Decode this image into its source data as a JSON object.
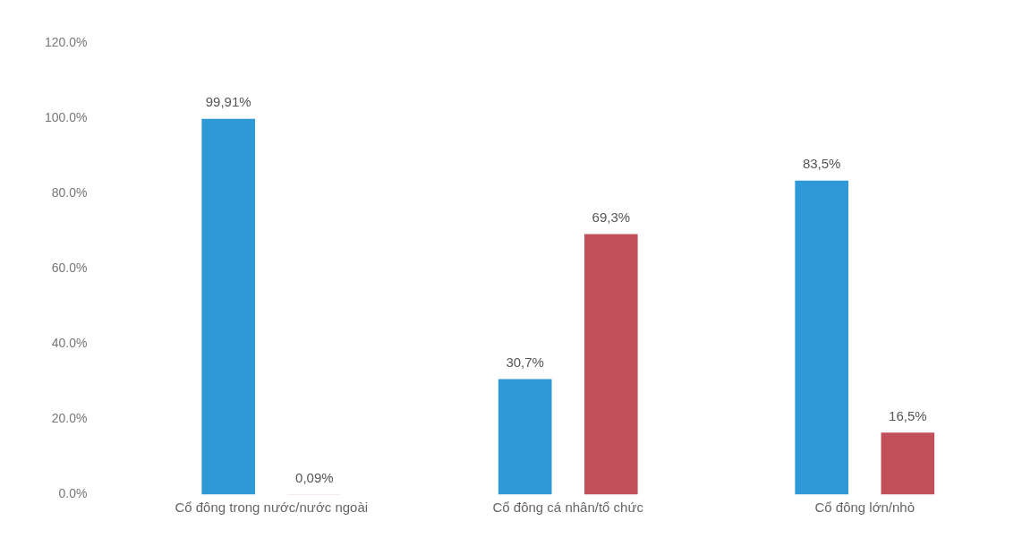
{
  "chart_data": {
    "type": "bar",
    "categories": [
      "Cổ đông trong nước/nước ngoài",
      "Cổ đông cá nhân/tổ chức",
      "Cổ đông lớn/nhỏ"
    ],
    "series": [
      {
        "color": "#2f98d6",
        "values": [
          99.91,
          30.7,
          83.5
        ],
        "value_labels": [
          "99,91%",
          "30,7%",
          "83,5%"
        ]
      },
      {
        "color": "#c2505b",
        "values": [
          0.09,
          69.3,
          16.5
        ],
        "value_labels": [
          "0,09%",
          "69,3%",
          "16,5%"
        ]
      }
    ],
    "ylim": [
      0,
      120
    ],
    "yticks": [
      {
        "value": 0,
        "label": "0.0%"
      },
      {
        "value": 20,
        "label": "20.0%"
      },
      {
        "value": 40,
        "label": "40.0%"
      },
      {
        "value": 60,
        "label": "60.0%"
      },
      {
        "value": 80,
        "label": "80.0%"
      },
      {
        "value": 100,
        "label": "100.0%"
      },
      {
        "value": 120,
        "label": "120.0%"
      }
    ],
    "grid": false,
    "legend": false
  }
}
